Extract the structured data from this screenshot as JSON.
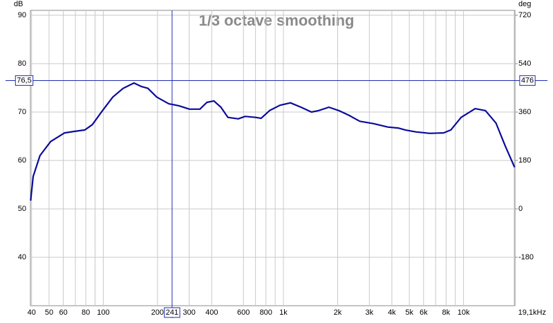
{
  "chart_data": {
    "type": "line",
    "title": "1/3 octave smoothing",
    "y_label": "dB",
    "y2_label": "deg",
    "x_log": true,
    "grid": true,
    "xlim": [
      39.4,
      19300
    ],
    "ylim": [
      30,
      91
    ],
    "y2lim": [
      -360,
      738
    ],
    "xticks": [
      40,
      50,
      60,
      80,
      100,
      200,
      300,
      400,
      600,
      800,
      {
        "value": 1000,
        "label": "1k"
      },
      {
        "value": 2000,
        "label": "2k"
      },
      {
        "value": 3000,
        "label": "3k"
      },
      {
        "value": 4000,
        "label": "4k"
      },
      {
        "value": 5000,
        "label": "5k"
      },
      {
        "value": 6000,
        "label": "6k"
      },
      {
        "value": 8000,
        "label": "8k"
      },
      {
        "value": 10000,
        "label": "10k"
      },
      {
        "value": 19100,
        "label": "19,1kHz"
      }
    ],
    "x_minor_ticks": [
      70,
      90,
      700,
      900,
      7000,
      9000
    ],
    "yticks": [
      90,
      80,
      70,
      60,
      50,
      40
    ],
    "y2ticks": [
      720,
      540,
      360,
      180,
      0,
      -180
    ],
    "cursor": {
      "x": 241,
      "x_label": "241",
      "y": 76.5,
      "y_label": "76,5",
      "y2": 476
    },
    "series": [
      {
        "color": "#0a0a9a",
        "x": [
          39.5,
          40.8,
          44.5,
          51,
          61,
          69,
          79,
          87,
          99,
          113,
          129,
          148,
          162,
          177,
          198,
          231,
          263,
          301,
          344,
          376,
          411,
          450,
          492,
          561,
          613,
          701,
          752,
          837,
          957,
          1094,
          1252,
          1432,
          1568,
          1788,
          2032,
          2320,
          2652,
          3174,
          3796,
          4340,
          4750,
          5430,
          6500,
          7760,
          8500,
          9700,
          11600,
          13240,
          15150,
          17000,
          19200
        ],
        "values": [
          51.7,
          56.7,
          61,
          63.9,
          65.7,
          66,
          66.3,
          67.4,
          70.3,
          73.1,
          74.9,
          76,
          75.3,
          74.9,
          73.1,
          71.7,
          71.3,
          70.6,
          70.6,
          72,
          72.3,
          71,
          68.9,
          68.6,
          69.1,
          68.9,
          68.7,
          70.3,
          71.4,
          71.9,
          71,
          70,
          70.3,
          71,
          70.3,
          69.3,
          68.1,
          67.6,
          66.9,
          66.7,
          66.3,
          65.9,
          65.6,
          65.7,
          66.3,
          68.9,
          70.7,
          70.3,
          67.7,
          63.1,
          58.6
        ]
      }
    ]
  }
}
